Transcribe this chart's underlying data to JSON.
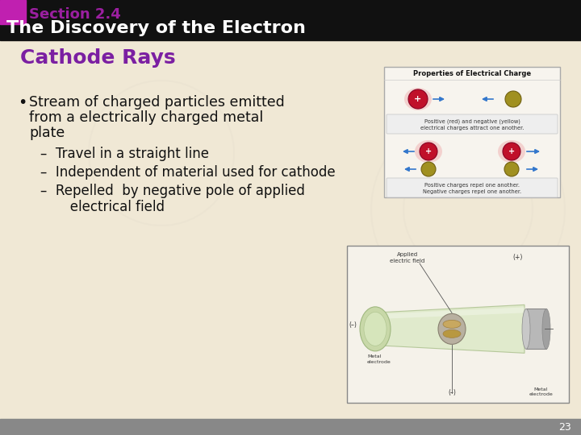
{
  "bg_color": "#f0e8d5",
  "header_bg": "#111111",
  "header_text": "The Discovery of the Electron",
  "header_text_color": "#ffffff",
  "section_label": "Section 2.4",
  "section_label_color": "#9b1fa0",
  "subtitle": "Cathode Rays",
  "subtitle_color": "#7b1fa2",
  "bullet_main": "Stream of charged particles emitted from a electrically charged metal plate",
  "sub_bullets": [
    "Travel in a straight line",
    "Independent of material used for cathode",
    "Repelled  by negative pole of applied\n         electrical field"
  ],
  "page_number": "23",
  "accent_bar_color": "#c020b0",
  "text_color": "#111111",
  "gray_bar_color": "#888888"
}
